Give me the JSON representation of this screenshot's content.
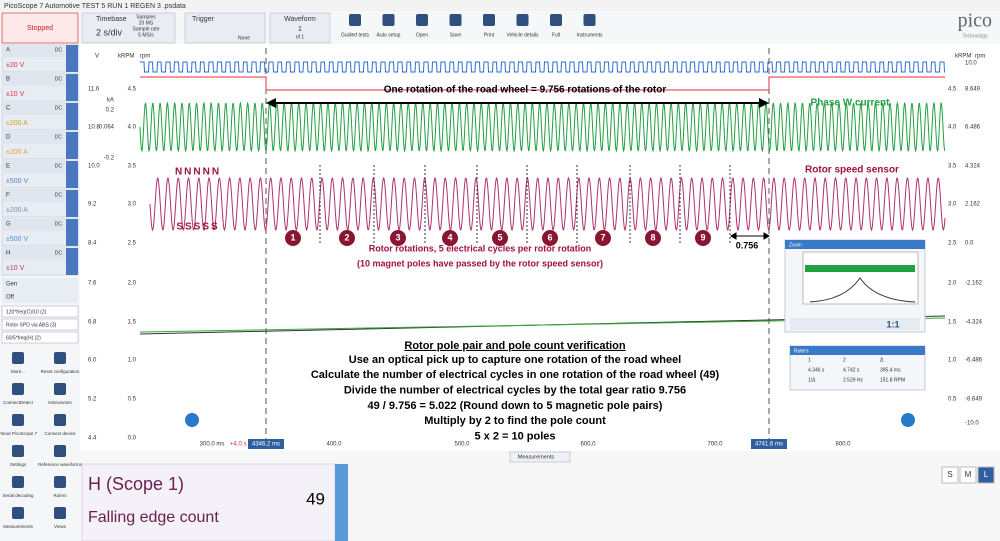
{
  "window_title": "PicoScope 7 Automotive TEST 5 RUN 1 REGEN 3 .psdata",
  "toolbar": {
    "status": "Stopped",
    "timebase": {
      "label": "Timebase",
      "value": "2 s/div",
      "samples": "Samples",
      "samples_value": "20 MS",
      "sample_rate": "Sample rate",
      "sample_rate_value": "5 MS/s"
    },
    "trigger": {
      "label": "Trigger",
      "mode": "None"
    },
    "waveform": {
      "label": "Waveform",
      "value": "1",
      "of": "of 1"
    },
    "buttons": [
      "Guided tests",
      "Auto setup",
      "Open",
      "Save",
      "Print",
      "Vehicle details",
      "Full",
      "Instruments"
    ]
  },
  "logo": {
    "name": "pico",
    "tagline": "Technology"
  },
  "channels": [
    {
      "letter": "A",
      "range": "±20 V",
      "coupling": "DC"
    },
    {
      "letter": "B",
      "range": "±10 V",
      "coupling": "DC"
    },
    {
      "letter": "C",
      "range": "±200 A",
      "coupling": "DC"
    },
    {
      "letter": "D",
      "range": "±200 A",
      "coupling": "DC"
    },
    {
      "letter": "E",
      "range": "±500 V",
      "coupling": "DC"
    },
    {
      "letter": "F",
      "range": "±200 A",
      "coupling": "DC"
    },
    {
      "letter": "G",
      "range": "±500 V",
      "coupling": "DC"
    },
    {
      "letter": "H",
      "range": "±10 V",
      "coupling": "DC"
    }
  ],
  "generator": {
    "label": "Gen",
    "state": "Off"
  },
  "math_channels": [
    "120*freq(C)/10 (2)",
    "Rotor SPD via ABS (3)",
    "60/5*freq(H) (2)"
  ],
  "sidebar": [
    "More...",
    "Reset configuration",
    "ConnectDetect",
    "Instruments",
    "About PicoScope 7",
    "Connect device",
    "Settings",
    "Reference waveforms",
    "Serial decoding",
    "Rulers",
    "Measurements",
    "Views"
  ],
  "axes": {
    "left_units": [
      "V",
      "kRPM",
      "rpm"
    ],
    "right_units": [
      "kRPM",
      "rpm"
    ],
    "left_outer": [
      "11.6",
      "10.8",
      "10.0",
      "9.2",
      "8.4",
      "7.6",
      "6.8",
      "6.0",
      "5.2",
      "4.4"
    ],
    "left_current": [
      "kA",
      "0.2",
      "0.064",
      "-0.2"
    ],
    "left_inner": [
      "4.5",
      "4.0",
      "3.5",
      "3.0",
      "2.5",
      "2.0",
      "1.5",
      "1.0",
      "0.5",
      "0.0"
    ],
    "right_inner": [
      "4.5",
      "4.0",
      "3.5",
      "3.0",
      "2.5",
      "2.0",
      "1.5",
      "1.0",
      "0.5"
    ],
    "right_outer": [
      "10.0",
      "8.649",
      "6.486",
      "4.324",
      "2.162",
      "0.0",
      "-2.162",
      "-4.324",
      "-6.486",
      "-8.649",
      "-10.0"
    ],
    "x_ticks": [
      "300.0 ms",
      "400.0",
      "500.0",
      "600.0",
      "700.0",
      "800.0"
    ],
    "x_offset": "+4.0 s",
    "ruler_1": "4346.2 ms",
    "ruler_2": "4741.6 ms"
  },
  "annotations": {
    "road_wheel": "One rotation of the road wheel = 9.756 rotations of the rotor",
    "phase": "Phase W current",
    "sensor": "Rotor speed sensor",
    "north": "NNNNN",
    "south": "SSSSS",
    "rotations": [
      "1",
      "2",
      "3",
      "4",
      "5",
      "6",
      "7",
      "8",
      "9"
    ],
    "remainder": "0.756",
    "cycles": "Rotor rotations, 5 electrical cycles per rotor rotation",
    "poles": "(10 magnet poles have passed by the rotor speed sensor)"
  },
  "explanation": {
    "title": "Rotor pole pair and pole count verification",
    "lines": [
      "Use an optical pick up to capture one rotation of the road wheel",
      "Calculate the number of electrical cycles in one rotation of the road wheel (49)",
      "Divide the number of electrical cycles by the total gear ratio 9.756",
      "49 / 9.756 = 5.022 (Round down to 5 magnetic pole pairs)",
      "Multiply by 2 to find the pole count",
      "5 x 2 = 10 poles"
    ]
  },
  "zoom": {
    "title": "Zoom",
    "ratio": "1:1"
  },
  "rulers": {
    "title": "Rulers",
    "headers": [
      "1",
      "2",
      "Δ"
    ],
    "rows": [
      [
        "4.346 s",
        "4.742 s",
        "395.4 ms"
      ],
      [
        "1/Δ",
        "2.529 Hz",
        "151.8 RPM"
      ]
    ]
  },
  "measurements_tab": "Measurements",
  "measurement": {
    "channel": "H (Scope 1)",
    "name": "Falling edge count",
    "value": "49"
  },
  "size_buttons": [
    "S",
    "M",
    "L"
  ]
}
